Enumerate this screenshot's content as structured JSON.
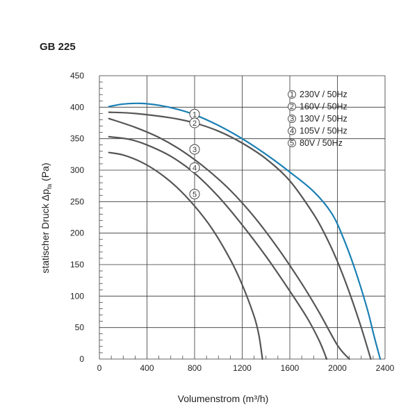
{
  "chart_data": {
    "type": "line",
    "title": "GB 225",
    "xlabel": "Volumenstrom (m³/h)",
    "ylabel_main": "statischer Druck Δp",
    "ylabel_sub": "fa",
    "ylabel_unit": " (Pa)",
    "xlim": [
      0,
      2400
    ],
    "ylim": [
      0,
      450
    ],
    "x_ticks": [
      0,
      400,
      800,
      1200,
      1600,
      2000,
      2400
    ],
    "x_tick_labels": [
      "0",
      "400",
      "800",
      "1200",
      "1600",
      "2000",
      "2400"
    ],
    "y_ticks": [
      0,
      50,
      100,
      150,
      200,
      250,
      300,
      350,
      400,
      450
    ],
    "y_tick_labels": [
      "0",
      "50",
      "100",
      "150",
      "200",
      "250",
      "300",
      "350",
      "400",
      "450"
    ],
    "grid": true,
    "legend_position": "top-right",
    "colors": {
      "primary": "#1a7fb4",
      "secondary": "#555555",
      "grid": "#333333"
    },
    "series": [
      {
        "marker": "1",
        "name": "230V / 50Hz",
        "color": "#1a7fb4",
        "x": [
          80,
          200,
          350,
          500,
          650,
          800,
          1000,
          1200,
          1400,
          1600,
          1800,
          1950,
          2050,
          2150,
          2250,
          2310,
          2360
        ],
        "y": [
          401,
          405,
          406,
          403,
          397,
          388,
          371,
          350,
          325,
          297,
          266,
          232,
          192,
          141,
          80,
          35,
          0
        ]
      },
      {
        "marker": "2",
        "name": "160V / 50Hz",
        "color": "#555555",
        "x": [
          80,
          300,
          600,
          800,
          1000,
          1200,
          1400,
          1600,
          1800,
          1900,
          2000,
          2100,
          2200,
          2280
        ],
        "y": [
          392,
          390,
          383,
          375,
          362,
          343,
          318,
          283,
          230,
          196,
          155,
          106,
          50,
          0
        ]
      },
      {
        "marker": "3",
        "name": "130V / 50Hz",
        "color": "#555555",
        "x": [
          80,
          300,
          500,
          700,
          900,
          1100,
          1300,
          1500,
          1700,
          1850,
          2000,
          2100
        ],
        "y": [
          382,
          368,
          352,
          330,
          302,
          268,
          226,
          176,
          120,
          73,
          22,
          0
        ]
      },
      {
        "marker": "4",
        "name": "105V / 50Hz",
        "color": "#555555",
        "x": [
          80,
          250,
          400,
          600,
          800,
          1000,
          1200,
          1400,
          1600,
          1750,
          1850,
          1910
        ],
        "y": [
          353,
          349,
          340,
          322,
          295,
          258,
          213,
          163,
          108,
          64,
          28,
          0
        ]
      },
      {
        "marker": "5",
        "name": "80V / 50Hz",
        "color": "#555555",
        "x": [
          80,
          200,
          350,
          500,
          650,
          800,
          950,
          1100,
          1200,
          1300,
          1340,
          1370
        ],
        "y": [
          328,
          324,
          313,
          296,
          273,
          243,
          206,
          158,
          118,
          68,
          38,
          0
        ]
      }
    ],
    "marker_points": [
      {
        "label": "1",
        "x": 800,
        "y": 389
      },
      {
        "label": "2",
        "x": 800,
        "y": 375
      },
      {
        "label": "3",
        "x": 800,
        "y": 333
      },
      {
        "label": "4",
        "x": 800,
        "y": 304
      },
      {
        "label": "5",
        "x": 800,
        "y": 262
      }
    ]
  }
}
